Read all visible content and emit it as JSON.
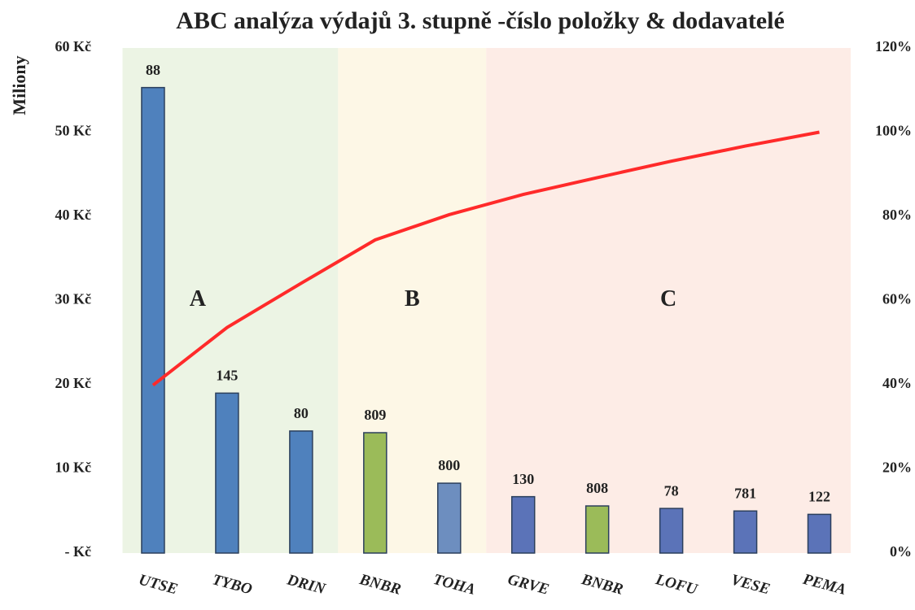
{
  "chart_data": {
    "type": "pareto",
    "title": "ABC analýza výdajů 3. stupně -číslo položky & dodavatelé",
    "y_label": "Miliony",
    "categories": [
      "UTSE",
      "TYBO",
      "DRIN",
      "BNBR",
      "TOHA",
      "GRVE",
      "BNBR",
      "LOFU",
      "VESE",
      "PEMA"
    ],
    "series": [
      {
        "values": [
          55.3,
          19.0,
          14.5,
          14.3,
          8.3,
          6.7,
          5.6,
          5.3,
          5.0,
          4.6
        ],
        "colors": [
          "#4f81bd",
          "#4f81bd",
          "#4f81bd",
          "#9bbb59",
          "#6d8ebf",
          "#5b73b8",
          "#9bbb59",
          "#5b73b8",
          "#5b73b8",
          "#5b73b8"
        ],
        "bar_labels": [
          "88",
          "145",
          "80",
          "809",
          "800",
          "130",
          "808",
          "78",
          "781",
          "122"
        ]
      },
      {
        "axis": "y2",
        "color": "#ff2a2a",
        "values": [
          39.9,
          53.6,
          64.1,
          74.4,
          80.4,
          85.2,
          89.2,
          93.1,
          96.7,
          100
        ]
      }
    ],
    "regions": [
      {
        "label": "A",
        "start": 0,
        "end": 2,
        "color": "#ecf4e4"
      },
      {
        "label": "B",
        "start": 3,
        "end": 4,
        "color": "#fdf7e6"
      },
      {
        "label": "C",
        "start": 5,
        "end": 9,
        "color": "#fdece6"
      }
    ],
    "ylim": [
      0,
      60
    ],
    "yticks": [
      {
        "value": 0,
        "label": "- Kč"
      },
      {
        "value": 10,
        "label": "10 Kč"
      },
      {
        "value": 20,
        "label": "20 Kč"
      },
      {
        "value": 30,
        "label": "30 Kč"
      },
      {
        "value": 40,
        "label": "40 Kč"
      },
      {
        "value": 50,
        "label": "50 Kč"
      },
      {
        "value": 60,
        "label": "60 Kč"
      }
    ],
    "y2lim": [
      0,
      120
    ],
    "y2ticks": [
      {
        "value": 0,
        "label": "0%"
      },
      {
        "value": 20,
        "label": "20%"
      },
      {
        "value": 40,
        "label": "40%"
      },
      {
        "value": 60,
        "label": "60%"
      },
      {
        "value": 80,
        "label": "80%"
      },
      {
        "value": 100,
        "label": "100%"
      },
      {
        "value": 120,
        "label": "120%"
      }
    ]
  }
}
